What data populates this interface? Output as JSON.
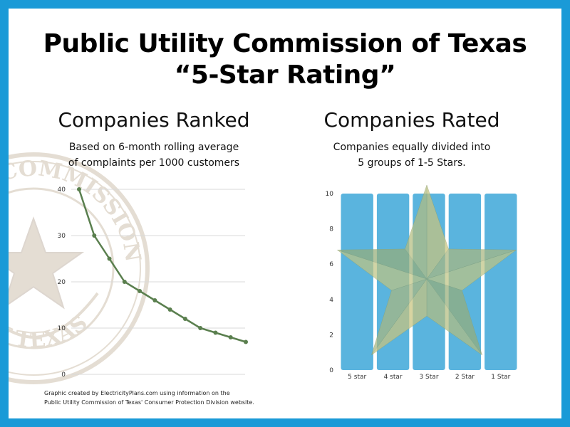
{
  "title": {
    "line1": "Public Utility Commission of Texas",
    "line2": "“5-Star Rating”"
  },
  "seal": {
    "text_top": "UTILITY COMMISSION",
    "text_bottom": "OF TEXAS"
  },
  "left_panel": {
    "heading": "Companies Ranked",
    "sub_line1": "Based on 6-month rolling average",
    "sub_line2": "of complaints per 1000 customers"
  },
  "right_panel": {
    "heading": "Companies Rated",
    "sub_line1": "Companies equally divided into",
    "sub_line2": "5 groups of 1-5 Stars."
  },
  "credit": {
    "line1": "Graphic created by ElectricityPlans.com using information on the",
    "line2": "Public Utility Commission of Texas' Consumer Protection Division website."
  },
  "chart_data": [
    {
      "type": "line",
      "title": "",
      "xlabel": "",
      "ylabel": "",
      "ylim": [
        0,
        40
      ],
      "yticks": [
        "0",
        "10",
        "20",
        "30",
        "40"
      ],
      "grid": true,
      "line_color": "#5a7f4e",
      "series": [
        {
          "values": [
            40,
            30,
            25,
            20,
            18,
            16,
            14,
            12,
            10,
            9,
            8,
            7
          ]
        }
      ]
    },
    {
      "type": "bar",
      "title": "",
      "xlabel": "",
      "ylabel": "",
      "ylim": [
        0,
        10
      ],
      "yticks": [
        "0",
        "2",
        "4",
        "6",
        "8",
        "10"
      ],
      "bar_color": "#5ab4de",
      "categories": [
        "5 star",
        "4 star",
        "3 Star",
        "2 Star",
        "1 Star"
      ],
      "values": [
        10,
        10,
        10,
        10,
        10
      ],
      "overlay": "star-icon"
    }
  ]
}
